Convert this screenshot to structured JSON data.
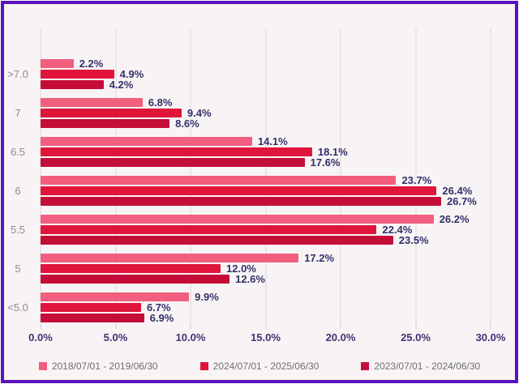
{
  "frame": {
    "border_color": "#5b10c1",
    "background_color": "#f8f4f5"
  },
  "colors": {
    "gridline": "#dcd8da",
    "axis_tick": "#c9c6c7",
    "value_label": "#32306a",
    "x_axis_label": "#3d3274",
    "category_label": "#8d8a8c",
    "legend_text": "#6e6e6e"
  },
  "chart_data": {
    "type": "bar",
    "orientation": "horizontal",
    "title": "",
    "categories": [
      ">7.0",
      "7",
      "6.5",
      "6",
      "5.5",
      "5",
      "<5.0"
    ],
    "series": [
      {
        "name": "2018/07/01 - 2019/06/30",
        "color": "#f15e7e",
        "values": [
          2.2,
          6.8,
          14.1,
          23.7,
          26.2,
          17.2,
          9.9
        ]
      },
      {
        "name": "2024/07/01 - 2025/06/30",
        "color": "#e0153c",
        "values": [
          4.9,
          9.4,
          18.1,
          26.4,
          22.4,
          12.0,
          6.7
        ]
      },
      {
        "name": "2023/07/01 - 2024/06/30",
        "color": "#c40e38",
        "values": [
          4.2,
          8.6,
          17.6,
          26.7,
          23.5,
          12.6,
          6.9
        ]
      }
    ],
    "x_axis": {
      "ticks": [
        "0.0%",
        "5.0%",
        "10.0%",
        "15.0%",
        "20.0%",
        "25.0%",
        "30.0%"
      ],
      "tick_values": [
        0,
        5,
        10,
        15,
        20,
        25,
        30
      ],
      "max": 30
    },
    "value_label_suffix": "%",
    "value_label_decimals": 1,
    "grid": "vertical",
    "legend_position": "bottom"
  }
}
